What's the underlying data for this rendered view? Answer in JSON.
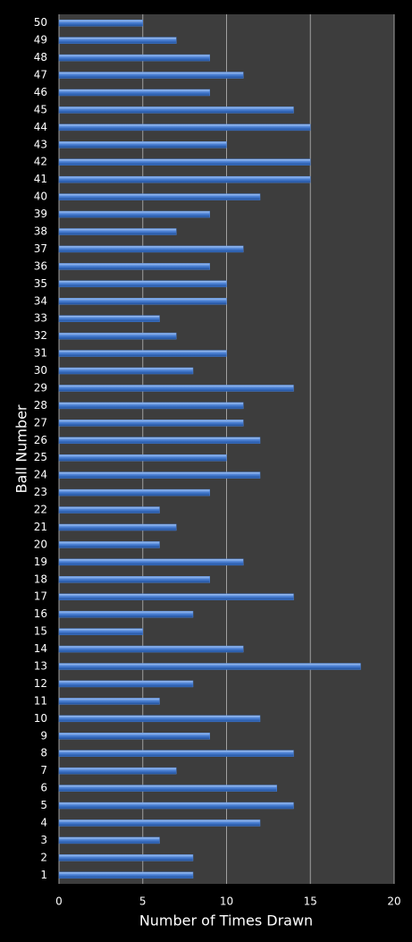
{
  "chart_data": {
    "type": "barh",
    "x_label": "Number of Times Drawn",
    "y_label": "Ball Number",
    "categories": [
      "1",
      "2",
      "3",
      "4",
      "5",
      "6",
      "7",
      "8",
      "9",
      "10",
      "11",
      "12",
      "13",
      "14",
      "15",
      "16",
      "17",
      "18",
      "19",
      "20",
      "21",
      "22",
      "23",
      "24",
      "25",
      "26",
      "27",
      "28",
      "29",
      "30",
      "31",
      "32",
      "33",
      "34",
      "35",
      "36",
      "37",
      "38",
      "39",
      "40",
      "41",
      "42",
      "43",
      "44",
      "45",
      "46",
      "47",
      "48",
      "49",
      "50"
    ],
    "values": [
      8,
      8,
      6,
      12,
      14,
      13,
      7,
      14,
      9,
      12,
      6,
      8,
      18,
      11,
      5,
      8,
      14,
      9,
      11,
      6,
      7,
      6,
      9,
      12,
      10,
      12,
      11,
      11,
      14,
      8,
      10,
      7,
      6,
      10,
      10,
      9,
      11,
      7,
      9,
      12,
      15,
      15,
      10,
      15,
      14,
      9,
      11,
      9,
      7,
      5
    ],
    "color": "#4a80d4",
    "xlim": [
      0,
      20
    ],
    "xticks": [
      0,
      5,
      10,
      15,
      20
    ],
    "grid": true
  }
}
